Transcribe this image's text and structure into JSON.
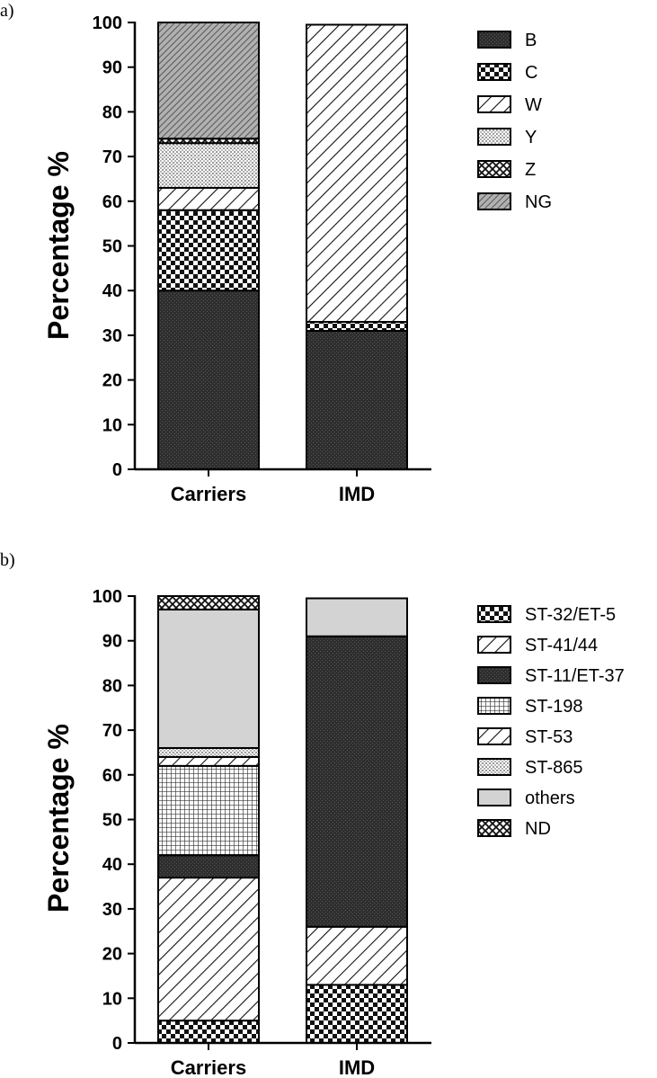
{
  "figure": {
    "panels": [
      "a)",
      "b)"
    ]
  },
  "chart_data": [
    {
      "type": "bar",
      "stacked": true,
      "panel_label": "a)",
      "title": "",
      "xlabel": "",
      "ylabel": "Percentage %",
      "ylim": [
        0,
        100
      ],
      "yticks": [
        0,
        10,
        20,
        30,
        40,
        50,
        60,
        70,
        80,
        90,
        100
      ],
      "grid": false,
      "legend_position": "right",
      "categories": [
        "Carriers",
        "IMD"
      ],
      "series": [
        {
          "name": "B",
          "pattern": "dark",
          "values": [
            40,
            31
          ]
        },
        {
          "name": "C",
          "pattern": "checker",
          "values": [
            18,
            2
          ]
        },
        {
          "name": "W",
          "pattern": "diag-wide",
          "values": [
            5,
            66.5
          ]
        },
        {
          "name": "Y",
          "pattern": "light-dots",
          "values": [
            10,
            0
          ]
        },
        {
          "name": "Z",
          "pattern": "crosshatch",
          "values": [
            1,
            0
          ]
        },
        {
          "name": "NG",
          "pattern": "gray-diag",
          "values": [
            26,
            0
          ]
        }
      ]
    },
    {
      "type": "bar",
      "stacked": true,
      "panel_label": "b)",
      "title": "",
      "xlabel": "",
      "ylabel": "Percentage %",
      "ylim": [
        0,
        100
      ],
      "yticks": [
        0,
        10,
        20,
        30,
        40,
        50,
        60,
        70,
        80,
        90,
        100
      ],
      "grid": false,
      "legend_position": "right",
      "categories": [
        "Carriers",
        "IMD"
      ],
      "series": [
        {
          "name": "ST-32/ET-5",
          "pattern": "checker",
          "values": [
            5,
            13
          ]
        },
        {
          "name": "ST-41/44",
          "pattern": "diag-wide",
          "values": [
            32,
            13
          ]
        },
        {
          "name": "ST-11/ET-37",
          "pattern": "dark",
          "values": [
            5,
            65
          ]
        },
        {
          "name": "ST-198",
          "pattern": "grid",
          "values": [
            20,
            0
          ]
        },
        {
          "name": "ST-53",
          "pattern": "diag-wide",
          "values": [
            2,
            0
          ]
        },
        {
          "name": "ST-865",
          "pattern": "light-dots",
          "values": [
            2,
            0
          ]
        },
        {
          "name": "others",
          "pattern": "gray",
          "values": [
            31,
            8.5
          ]
        },
        {
          "name": "ND",
          "pattern": "crosshatch",
          "values": [
            3,
            0
          ]
        }
      ]
    }
  ]
}
